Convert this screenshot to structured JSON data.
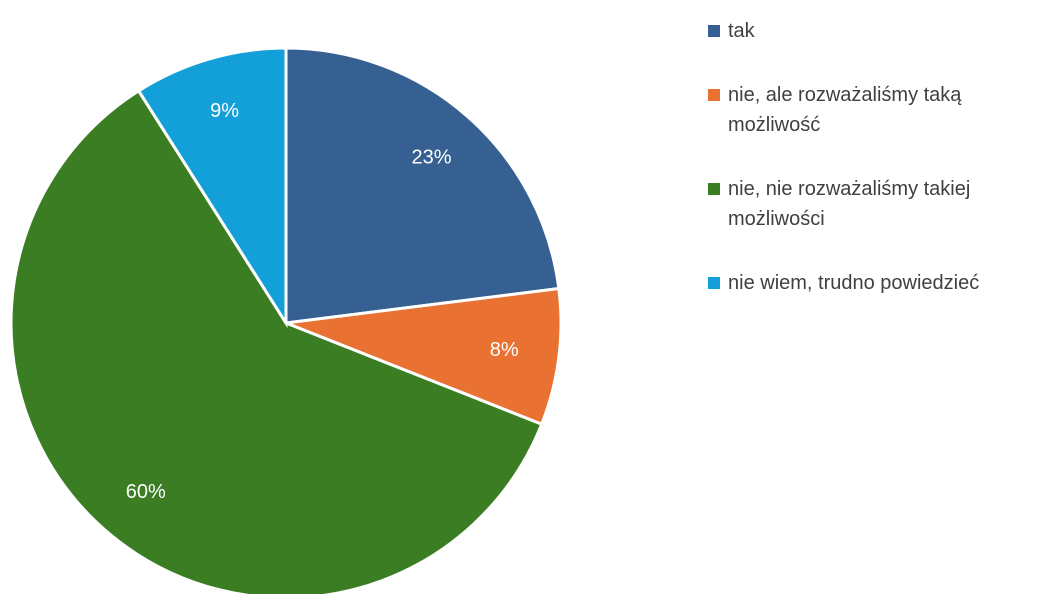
{
  "chart_data": {
    "type": "pie",
    "categories": [
      "tak",
      "nie, ale rozważaliśmy taką możliwość",
      "nie, nie rozważaliśmy takiej możliwości",
      "nie wiem, trudno powiedzieć"
    ],
    "values": [
      23,
      8,
      60,
      9
    ],
    "value_labels": [
      "23%",
      "8%",
      "60%",
      "9%"
    ],
    "colors": [
      "#376092",
      "#e97132",
      "#3b7d23",
      "#13a0d8"
    ],
    "legend": "right"
  }
}
